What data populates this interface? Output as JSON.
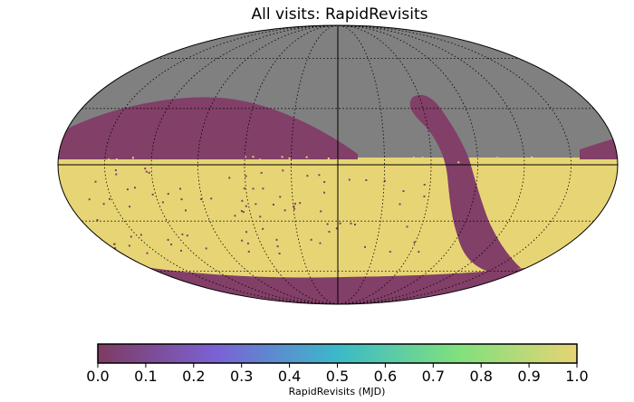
{
  "chart_data": {
    "type": "heatmap",
    "projection": "mollweide",
    "title": "All visits: RapidRevisits",
    "colorbar": {
      "label": "RapidRevisits (MJD)",
      "range": [
        0.0,
        1.0
      ],
      "ticks": [
        "0.0",
        "0.1",
        "0.2",
        "0.3",
        "0.4",
        "0.5",
        "0.6",
        "0.7",
        "0.8",
        "0.9",
        "1.0"
      ],
      "colormap": "viridis",
      "colormap_hex": [
        "#7e3b62",
        "#7b62d4",
        "#3bb9c9",
        "#7fe07e",
        "#e6d474"
      ]
    },
    "colors": {
      "no_data": "#808080",
      "value_0": "#823f68",
      "value_1": "#e7d575"
    },
    "regions": [
      {
        "description": "northern sky mostly no data",
        "value": null
      },
      {
        "description": "southern declination band mostly value 1",
        "value": 1.0
      },
      {
        "description": "galactic plane band value 0",
        "value": 0.0
      },
      {
        "description": "northern ecliptic arc value 0",
        "value": 0.0
      },
      {
        "description": "southern cap value 0",
        "value": 0.0
      }
    ],
    "grid": true
  }
}
